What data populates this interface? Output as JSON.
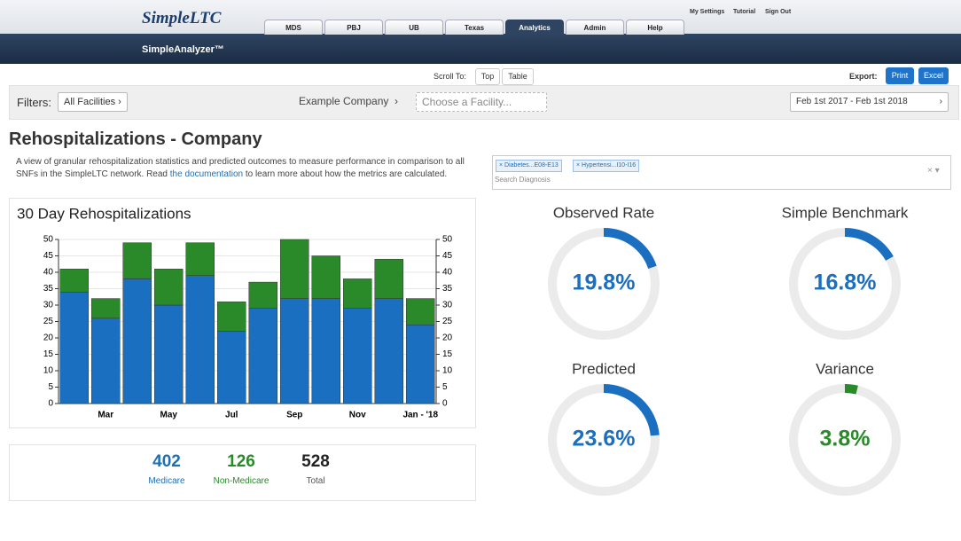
{
  "header": {
    "logo": "SimpleLTC",
    "user_links": [
      "My Settings",
      "Tutorial",
      "Sign Out"
    ],
    "tabs": [
      {
        "label": "MDS",
        "active": false
      },
      {
        "label": "PBJ",
        "active": false
      },
      {
        "label": "UB",
        "active": false
      },
      {
        "label": "Texas",
        "active": false
      },
      {
        "label": "Analytics",
        "active": true
      },
      {
        "label": "Admin",
        "active": false
      },
      {
        "label": "Help",
        "active": false
      }
    ],
    "subtitle": "SimpleAnalyzer™"
  },
  "toolbar": {
    "scroll_to_label": "Scroll To:",
    "scroll_buttons": [
      "Top",
      "Table"
    ],
    "export_label": "Export:",
    "export_buttons": [
      "Print",
      "Excel"
    ]
  },
  "filters": {
    "label": "Filters:",
    "facilities": "All Facilities",
    "company": "Example Company",
    "facility_placeholder": "Choose a Facility...",
    "date_range": "Feb 1st 2017 - Feb 1st 2018"
  },
  "page": {
    "title": "Rehospitalizations - Company",
    "description_before": "A view of granular rehospitalization statistics and predicted outcomes to measure performance in comparison to all SNFs in the SimpleLTC network. Read ",
    "link": "the documentation",
    "description_after": " to learn more about how the metrics are calculated."
  },
  "diagnosis": {
    "tags": [
      "Diabetes...E08-E13",
      "Hypertensi...I10-I16"
    ],
    "placeholder": "Search Diagnosis"
  },
  "summary": [
    {
      "value": "402",
      "label": "Medicare",
      "color": "#1f6fb5"
    },
    {
      "value": "126",
      "label": "Non-Medicare",
      "color": "#2a8a2a"
    },
    {
      "value": "528",
      "label": "Total",
      "color": "#222222"
    }
  ],
  "chart_data": [
    {
      "type": "bar",
      "stacked": true,
      "title": "30 Day Rehospitalizations",
      "categories": [
        null,
        "Mar",
        null,
        "May",
        null,
        "Jul",
        null,
        "Sep",
        null,
        "Nov",
        null,
        "Jan - '18"
      ],
      "series": [
        {
          "color": "#1a6fc0",
          "values": [
            34,
            26,
            38,
            30,
            39,
            22,
            29,
            32,
            32,
            29,
            32,
            24
          ]
        },
        {
          "color": "#2a8a2a",
          "values": [
            7,
            6,
            11,
            11,
            10,
            9,
            8,
            18,
            13,
            9,
            12,
            8
          ]
        }
      ],
      "ylim": [
        0,
        50
      ],
      "yticks": [
        0,
        5,
        10,
        15,
        20,
        25,
        30,
        35,
        40,
        45,
        50
      ],
      "y2lim": [
        0,
        50
      ],
      "y2ticks": [
        0,
        5,
        10,
        15,
        20,
        25,
        30,
        35,
        40,
        45,
        50
      ]
    },
    {
      "type": "gauge",
      "title": "Observed Rate",
      "values": [
        19.8
      ],
      "value_labels": [
        "19.8%"
      ],
      "color": "#1a6fc0",
      "ylim": [
        0,
        100
      ]
    },
    {
      "type": "gauge",
      "title": "Simple Benchmark",
      "values": [
        16.8
      ],
      "value_labels": [
        "16.8%"
      ],
      "color": "#1a6fc0",
      "ylim": [
        0,
        100
      ]
    },
    {
      "type": "gauge",
      "title": "Predicted",
      "values": [
        23.6
      ],
      "value_labels": [
        "23.6%"
      ],
      "color": "#1a6fc0",
      "ylim": [
        0,
        100
      ]
    },
    {
      "type": "gauge",
      "title": "Variance",
      "values": [
        3.8
      ],
      "value_labels": [
        "3.8%"
      ],
      "color": "#2a8a2a",
      "ylim": [
        0,
        100
      ]
    }
  ]
}
